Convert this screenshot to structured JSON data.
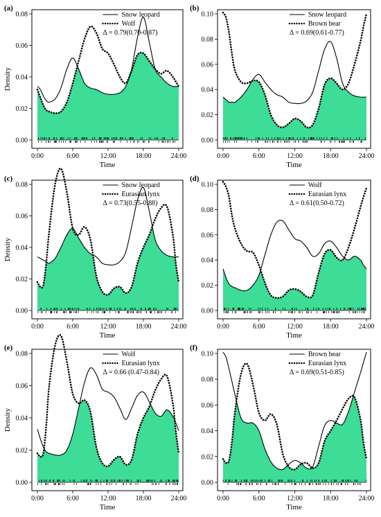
{
  "colors": {
    "overlap": "#3ddc97",
    "line": "#000000"
  },
  "chart_data": [
    {
      "type": "line",
      "panel_label": "(a)",
      "xlabel": "Time",
      "ylabel": "Density",
      "xlim": [
        0,
        24
      ],
      "ylim": [
        0,
        0.08
      ],
      "x_ticks": [
        "0:00",
        "6:00",
        "12:00",
        "18:00",
        "24:00"
      ],
      "y_ticks": [
        "0.00",
        "0.02",
        "0.04",
        "0.06",
        "0.08"
      ],
      "annotation": "Δ = 0.79(0.70-0.87)",
      "x": [
        0,
        0.5,
        1,
        1.5,
        2,
        3,
        4,
        5,
        6,
        7,
        8,
        9,
        10,
        11,
        12,
        13,
        14,
        15,
        16,
        17,
        18,
        19,
        20,
        21,
        22,
        23,
        23.5,
        24
      ],
      "series": [
        {
          "name": "Snow leopard",
          "style": "solid",
          "values": [
            0.034,
            0.032,
            0.028,
            0.025,
            0.024,
            0.026,
            0.033,
            0.045,
            0.052,
            0.045,
            0.036,
            0.033,
            0.032,
            0.03,
            0.029,
            0.029,
            0.03,
            0.034,
            0.045,
            0.065,
            0.078,
            0.062,
            0.045,
            0.04,
            0.036,
            0.034,
            0.034,
            0.034
          ]
        },
        {
          "name": "Wolf",
          "style": "dotted",
          "values": [
            0.032,
            0.027,
            0.022,
            0.019,
            0.018,
            0.017,
            0.018,
            0.024,
            0.036,
            0.05,
            0.064,
            0.072,
            0.068,
            0.058,
            0.055,
            0.048,
            0.04,
            0.036,
            0.044,
            0.054,
            0.055,
            0.05,
            0.045,
            0.042,
            0.044,
            0.04,
            0.037,
            0.034
          ]
        }
      ],
      "legend_position": "top-right"
    },
    {
      "type": "line",
      "panel_label": "(b)",
      "xlabel": "Time",
      "ylabel": "",
      "xlim": [
        0,
        24
      ],
      "ylim": [
        0,
        0.1
      ],
      "x_ticks": [
        "0:00",
        "6:00",
        "12:00",
        "18:00",
        "24:00"
      ],
      "y_ticks": [
        "0.00",
        "0.02",
        "0.04",
        "0.06",
        "0.08",
        "0.10"
      ],
      "annotation": "Δ = 0.69(0.61-0.77)",
      "x": [
        0,
        0.5,
        1,
        1.5,
        2,
        3,
        4,
        5,
        6,
        7,
        8,
        9,
        10,
        11,
        12,
        13,
        14,
        15,
        16,
        17,
        18,
        19,
        20,
        21,
        22,
        23,
        23.5,
        24
      ],
      "series": [
        {
          "name": "Snow leopard",
          "style": "solid",
          "values": [
            0.034,
            0.032,
            0.03,
            0.03,
            0.03,
            0.034,
            0.04,
            0.048,
            0.052,
            0.046,
            0.04,
            0.036,
            0.034,
            0.03,
            0.029,
            0.029,
            0.031,
            0.038,
            0.055,
            0.072,
            0.078,
            0.065,
            0.045,
            0.038,
            0.035,
            0.034,
            0.034,
            0.034
          ]
        },
        {
          "name": "Brown bear",
          "style": "dotted",
          "values": [
            0.101,
            0.097,
            0.085,
            0.068,
            0.055,
            0.046,
            0.045,
            0.047,
            0.046,
            0.036,
            0.02,
            0.012,
            0.01,
            0.013,
            0.017,
            0.015,
            0.01,
            0.012,
            0.025,
            0.044,
            0.049,
            0.045,
            0.04,
            0.045,
            0.06,
            0.078,
            0.09,
            0.1
          ]
        }
      ],
      "legend_position": "top-right"
    },
    {
      "type": "line",
      "panel_label": "(c)",
      "xlabel": "Time",
      "ylabel": "Density",
      "xlim": [
        0,
        24
      ],
      "ylim": [
        0,
        0.08
      ],
      "x_ticks": [
        "0:00",
        "6:00",
        "12:00",
        "18:00",
        "24:00"
      ],
      "y_ticks": [
        "0.00",
        "0.02",
        "0.04",
        "0.06",
        "0.08"
      ],
      "annotation": "Δ = 0.73(0.55-0.88)",
      "x": [
        0,
        0.5,
        1,
        1.5,
        2,
        3,
        4,
        5,
        6,
        7,
        8,
        9,
        10,
        11,
        12,
        13,
        14,
        15,
        16,
        17,
        18,
        19,
        20,
        21,
        22,
        23,
        23.5,
        24
      ],
      "series": [
        {
          "name": "Snow leopard",
          "style": "solid",
          "values": [
            0.034,
            0.033,
            0.032,
            0.031,
            0.03,
            0.033,
            0.04,
            0.048,
            0.052,
            0.046,
            0.04,
            0.036,
            0.034,
            0.03,
            0.029,
            0.029,
            0.031,
            0.037,
            0.053,
            0.07,
            0.078,
            0.063,
            0.045,
            0.038,
            0.035,
            0.034,
            0.034,
            0.034
          ]
        },
        {
          "name": "Eurasian lynx",
          "style": "dotted",
          "values": [
            0.018,
            0.015,
            0.016,
            0.03,
            0.05,
            0.08,
            0.09,
            0.075,
            0.052,
            0.048,
            0.053,
            0.045,
            0.022,
            0.012,
            0.01,
            0.014,
            0.015,
            0.011,
            0.015,
            0.03,
            0.04,
            0.048,
            0.058,
            0.065,
            0.066,
            0.048,
            0.03,
            0.018
          ]
        }
      ],
      "legend_position": "top-right"
    },
    {
      "type": "line",
      "panel_label": "(d)",
      "xlabel": "Time",
      "ylabel": "",
      "xlim": [
        0,
        24
      ],
      "ylim": [
        0,
        0.1
      ],
      "x_ticks": [
        "0:00",
        "6:00",
        "12:00",
        "18:00",
        "24:00"
      ],
      "y_ticks": [
        "0.00",
        "0.02",
        "0.04",
        "0.06",
        "0.08",
        "0.10"
      ],
      "annotation": "Δ = 0.61(0.50-0.72)",
      "x": [
        0,
        0.5,
        1,
        1.5,
        2,
        3,
        4,
        5,
        6,
        7,
        8,
        9,
        10,
        11,
        12,
        13,
        14,
        15,
        16,
        17,
        18,
        19,
        20,
        21,
        22,
        23,
        23.5,
        24
      ],
      "series": [
        {
          "name": "Wolf",
          "style": "solid",
          "values": [
            0.033,
            0.026,
            0.021,
            0.019,
            0.018,
            0.016,
            0.016,
            0.02,
            0.028,
            0.044,
            0.06,
            0.07,
            0.071,
            0.064,
            0.057,
            0.055,
            0.05,
            0.043,
            0.045,
            0.053,
            0.055,
            0.05,
            0.043,
            0.04,
            0.043,
            0.04,
            0.036,
            0.033
          ]
        },
        {
          "name": "Eurasian lynx",
          "style": "dotted",
          "values": [
            0.102,
            0.098,
            0.09,
            0.075,
            0.065,
            0.053,
            0.047,
            0.046,
            0.036,
            0.022,
            0.012,
            0.01,
            0.011,
            0.016,
            0.017,
            0.015,
            0.011,
            0.012,
            0.03,
            0.045,
            0.048,
            0.042,
            0.04,
            0.05,
            0.065,
            0.082,
            0.09,
            0.097
          ]
        }
      ],
      "legend_position": "top-right"
    },
    {
      "type": "line",
      "panel_label": "(e)",
      "xlabel": "Time",
      "ylabel": "Density",
      "xlim": [
        0,
        24
      ],
      "ylim": [
        0,
        0.08
      ],
      "x_ticks": [
        "0:00",
        "6:00",
        "12:00",
        "18:00",
        "24:00"
      ],
      "y_ticks": [
        "0.00",
        "0.02",
        "0.04",
        "0.06",
        "0.08"
      ],
      "annotation": "Δ = 0.66 (0.47-0.84)",
      "x": [
        0,
        0.5,
        1,
        1.5,
        2,
        3,
        4,
        5,
        6,
        7,
        8,
        9,
        10,
        11,
        12,
        13,
        14,
        15,
        16,
        17,
        18,
        19,
        20,
        21,
        22,
        23,
        23.5,
        24
      ],
      "series": [
        {
          "name": "Wolf",
          "style": "solid",
          "values": [
            0.033,
            0.027,
            0.022,
            0.019,
            0.018,
            0.017,
            0.017,
            0.02,
            0.03,
            0.046,
            0.062,
            0.071,
            0.067,
            0.058,
            0.056,
            0.053,
            0.046,
            0.039,
            0.046,
            0.054,
            0.056,
            0.05,
            0.043,
            0.041,
            0.045,
            0.041,
            0.037,
            0.032
          ]
        },
        {
          "name": "Eurasian lynx",
          "style": "dotted",
          "values": [
            0.018,
            0.016,
            0.018,
            0.035,
            0.06,
            0.085,
            0.091,
            0.075,
            0.055,
            0.049,
            0.051,
            0.044,
            0.022,
            0.012,
            0.01,
            0.014,
            0.016,
            0.011,
            0.014,
            0.03,
            0.04,
            0.047,
            0.057,
            0.064,
            0.066,
            0.049,
            0.032,
            0.018
          ]
        }
      ],
      "legend_position": "top-right"
    },
    {
      "type": "line",
      "panel_label": "(f)",
      "xlabel": "Time",
      "ylabel": "",
      "xlim": [
        0,
        24
      ],
      "ylim": [
        0,
        0.1
      ],
      "x_ticks": [
        "0:00",
        "6:00",
        "12:00",
        "18:00",
        "24:00"
      ],
      "y_ticks": [
        "0.00",
        "0.02",
        "0.04",
        "0.06",
        "0.08",
        "0.10"
      ],
      "annotation": "Δ = 0.69(0.51-0.85)",
      "x": [
        0,
        0.5,
        1,
        1.5,
        2,
        3,
        4,
        5,
        6,
        7,
        8,
        9,
        10,
        11,
        12,
        13,
        14,
        15,
        16,
        17,
        18,
        19,
        20,
        21,
        22,
        23,
        23.5,
        24
      ],
      "series": [
        {
          "name": "Brown bear",
          "style": "solid",
          "values": [
            0.101,
            0.097,
            0.088,
            0.078,
            0.068,
            0.05,
            0.046,
            0.046,
            0.04,
            0.026,
            0.016,
            0.011,
            0.01,
            0.014,
            0.017,
            0.015,
            0.011,
            0.012,
            0.028,
            0.044,
            0.048,
            0.046,
            0.045,
            0.055,
            0.07,
            0.085,
            0.093,
            0.101
          ]
        },
        {
          "name": "Eurasian lynx",
          "style": "dotted",
          "values": [
            0.018,
            0.015,
            0.017,
            0.032,
            0.055,
            0.084,
            0.092,
            0.076,
            0.054,
            0.048,
            0.053,
            0.045,
            0.022,
            0.012,
            0.01,
            0.014,
            0.015,
            0.011,
            0.015,
            0.032,
            0.04,
            0.048,
            0.057,
            0.065,
            0.066,
            0.049,
            0.031,
            0.018
          ]
        }
      ],
      "legend_position": "top-right"
    }
  ]
}
